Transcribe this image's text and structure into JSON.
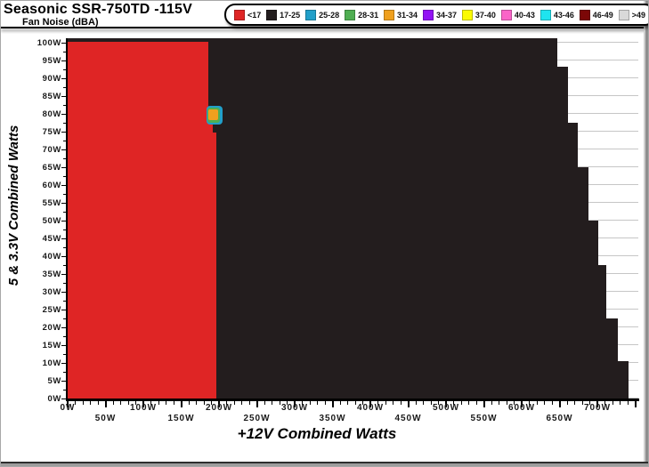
{
  "window": {
    "title": "Seasonic SSR-750TD -115V",
    "subtitle": "Fan Noise (dBA)"
  },
  "legend": {
    "items": [
      {
        "label": "<17",
        "color": "#df2525"
      },
      {
        "label": "17-25",
        "color": "#231d1e"
      },
      {
        "label": "25-28",
        "color": "#219fc9"
      },
      {
        "label": "28-31",
        "color": "#4fae52"
      },
      {
        "label": "31-34",
        "color": "#efa01e"
      },
      {
        "label": "34-37",
        "color": "#9213f4"
      },
      {
        "label": "37-40",
        "color": "#fbfb02"
      },
      {
        "label": "40-43",
        "color": "#fa64c8"
      },
      {
        "label": "43-46",
        "color": "#1fe4ef"
      },
      {
        "label": "46-49",
        "color": "#7c0707"
      },
      {
        "label": ">49",
        "color": "#d9d9d9"
      }
    ]
  },
  "chart_data": {
    "type": "heatmap",
    "title": "Seasonic SSR-750TD -115V",
    "subtitle": "Fan Noise (dBA)",
    "xlabel": "+12V Combined Watts",
    "ylabel": "5 & 3.3V Combined Watts",
    "xlim": [
      0,
      754
    ],
    "ylim": [
      0,
      101
    ],
    "x_label_step_w": 50,
    "x_minor_step_w": 10,
    "y_label_step_w": 5,
    "y_minor_step_w": 2.5,
    "x_tick_labels": [
      "0W",
      "50W",
      "100W",
      "150W",
      "200W",
      "250W",
      "300W",
      "350W",
      "400W",
      "450W",
      "500W",
      "550W",
      "600W",
      "650W",
      "700W"
    ],
    "y_tick_labels": [
      "100W",
      "95W",
      "90W",
      "85W",
      "80W",
      "75W",
      "70W",
      "65W",
      "60W",
      "55W",
      "50W",
      "45W",
      "40W",
      "35W",
      "30W",
      "25W",
      "20W",
      "15W",
      "10W",
      "5W",
      "0W"
    ],
    "bins_dba": [
      "<17",
      "17-25",
      "25-28",
      "28-31",
      "31-34",
      "34-37",
      "37-40",
      "40-43",
      "43-46",
      "46-49",
      ">49"
    ],
    "grid": "horizontal-only",
    "legend_position": "top",
    "layers": [
      {
        "name": "noise-region-17-25dBA",
        "bin": "17-25",
        "rects": [
          {
            "x": [
              0,
              647
            ],
            "y": [
              93.2,
              101.2
            ]
          },
          {
            "x": [
              0,
              661
            ],
            "y": [
              77.5,
              93.2
            ]
          },
          {
            "x": [
              0,
              674
            ],
            "y": [
              65.0,
              77.5
            ]
          },
          {
            "x": [
              0,
              688
            ],
            "y": [
              50.0,
              65.0
            ]
          },
          {
            "x": [
              0,
              701
            ],
            "y": [
              37.5,
              50.0
            ]
          },
          {
            "x": [
              0,
              712
            ],
            "y": [
              22.5,
              37.5
            ]
          },
          {
            "x": [
              0,
              727
            ],
            "y": [
              10.5,
              22.5
            ]
          },
          {
            "x": [
              0,
              741
            ],
            "y": [
              0.0,
              10.5
            ]
          }
        ]
      },
      {
        "name": "noise-region-under-17dBA",
        "bin": "<17",
        "rects": [
          {
            "x": [
              0,
              186
            ],
            "y": [
              80.0,
              100.3
            ]
          },
          {
            "x": [
              0,
              192
            ],
            "y": [
              74.8,
              80.0
            ]
          },
          {
            "x": [
              0,
              196
            ],
            "y": [
              0.0,
              74.8
            ]
          }
        ]
      },
      {
        "name": "noise-hotspot-80w",
        "rects": [
          {
            "bin": "25-28",
            "x": [
              183.5,
              205.0
            ],
            "y": [
              77.0,
              82.3
            ],
            "r": 4
          },
          {
            "bin": "28-31",
            "x": [
              184.8,
              201.5
            ],
            "y": [
              77.5,
              81.8
            ],
            "r": 3
          },
          {
            "bin": "31-34",
            "x": [
              186.0,
              199.0
            ],
            "y": [
              78.2,
              81.2
            ],
            "r": 2
          }
        ]
      }
    ]
  }
}
